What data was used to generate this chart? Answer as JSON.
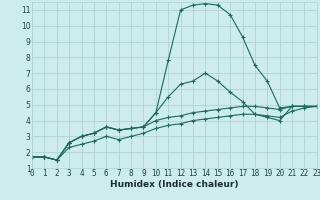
{
  "xlabel": "Humidex (Indice chaleur)",
  "bg_color": "#cdecea",
  "grid_color": "#aed4d0",
  "line_color": "#1a6b5a",
  "x_all": [
    0,
    1,
    2,
    3,
    4,
    5,
    6,
    7,
    8,
    9,
    10,
    11,
    12,
    13,
    14,
    15,
    16,
    17,
    18,
    19,
    20,
    21,
    22,
    23
  ],
  "series": [
    [
      1.7,
      1.7,
      1.5,
      2.6,
      3.0,
      3.2,
      3.6,
      3.4,
      3.5,
      3.6,
      4.5,
      7.8,
      11.0,
      11.3,
      11.4,
      11.3,
      10.7,
      9.3,
      7.5,
      6.5,
      4.8,
      4.9,
      4.9,
      4.9
    ],
    [
      1.7,
      1.7,
      1.5,
      2.6,
      3.0,
      3.2,
      3.6,
      3.4,
      3.5,
      3.6,
      4.5,
      5.5,
      6.3,
      6.5,
      7.0,
      6.5,
      5.8,
      5.2,
      4.4,
      4.2,
      4.0,
      4.9,
      4.9,
      4.9
    ],
    [
      1.7,
      1.7,
      1.5,
      2.6,
      3.0,
      3.2,
      3.6,
      3.4,
      3.5,
      3.6,
      4.0,
      4.2,
      4.3,
      4.5,
      4.6,
      4.7,
      4.8,
      4.9,
      4.9,
      4.8,
      4.7,
      4.9,
      4.9,
      4.9
    ],
    [
      1.7,
      1.7,
      1.5,
      2.3,
      2.5,
      2.7,
      3.0,
      2.8,
      3.0,
      3.2,
      3.5,
      3.7,
      3.8,
      4.0,
      4.1,
      4.2,
      4.3,
      4.4,
      4.4,
      4.3,
      4.2,
      4.6,
      4.8,
      4.9
    ]
  ],
  "xlim": [
    0,
    23
  ],
  "ylim": [
    1,
    11.5
  ],
  "yticks": [
    1,
    2,
    3,
    4,
    5,
    6,
    7,
    8,
    9,
    10,
    11
  ],
  "xticks": [
    0,
    1,
    2,
    3,
    4,
    5,
    6,
    7,
    8,
    9,
    10,
    11,
    12,
    13,
    14,
    15,
    16,
    17,
    18,
    19,
    20,
    21,
    22,
    23
  ],
  "tick_font_size": 5.5,
  "xlabel_font_size": 6.5
}
